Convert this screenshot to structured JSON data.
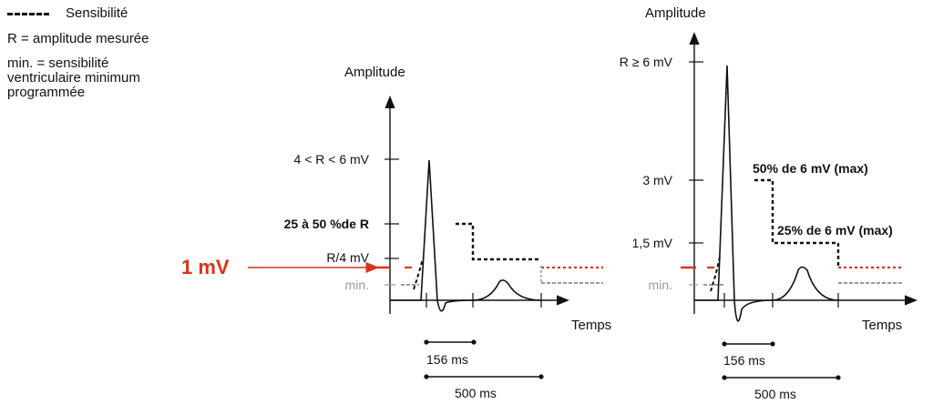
{
  "legend": {
    "sensitivity_label": "Sensibilité",
    "r_definition": "R = amplitude mesurée",
    "min_definition_lines": [
      "min. = sensibilité",
      "ventriculaire minimum",
      "programmée"
    ]
  },
  "left_diagram": {
    "y_axis_title": "Amplitude",
    "x_axis_title": "Temps",
    "tick_r_range": "4 < R < 6 mV",
    "tick_25_50": "25 à 50 %de R",
    "tick_r_quarter": "R/4 mV",
    "tick_min": "min.",
    "one_mv_label": "1 mV",
    "interval_short": "156 ms",
    "interval_long": "500 ms"
  },
  "right_diagram": {
    "y_axis_title": "Amplitude",
    "x_axis_title": "Temps",
    "tick_r_ge": "R ≥ 6 mV",
    "tick_3mv": "3 mV",
    "tick_1_5mv": "1,5 mV",
    "tick_min": "min.",
    "label_50pct": "50% de 6 mV (max)",
    "label_25pct": "25% de 6 mV (max)",
    "interval_short": "156 ms",
    "interval_long": "500 ms"
  },
  "colors": {
    "line": "#111111",
    "red": "#d9341c",
    "gray": "#9a9a9a"
  }
}
